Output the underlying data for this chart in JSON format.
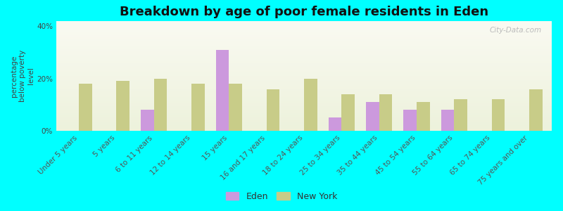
{
  "title": "Breakdown by age of poor female residents in Eden",
  "ylabel": "percentage\nbelow poverty\nlevel",
  "background_color": "#00FFFF",
  "plot_bg_top": "#fafaf2",
  "plot_bg_bottom": "#edf2dc",
  "categories": [
    "Under 5 years",
    "5 years",
    "6 to 11 years",
    "12 to 14 years",
    "15 years",
    "16 and 17 years",
    "18 to 24 years",
    "25 to 34 years",
    "35 to 44 years",
    "45 to 54 years",
    "55 to 64 years",
    "65 to 74 years",
    "75 years and over"
  ],
  "eden_values": [
    0,
    0,
    8,
    0,
    31,
    0,
    0,
    5,
    11,
    8,
    8,
    0,
    0
  ],
  "ny_values": [
    18,
    19,
    20,
    18,
    18,
    16,
    20,
    14,
    14,
    11,
    12,
    12,
    16
  ],
  "eden_color": "#cc99dd",
  "ny_color": "#c8cc88",
  "ylim": [
    0,
    42
  ],
  "yticks": [
    0,
    20,
    40
  ],
  "ytick_labels": [
    "0%",
    "20%",
    "40%"
  ],
  "bar_width": 0.35,
  "title_fontsize": 13,
  "tick_fontsize": 7.5,
  "ylabel_fontsize": 7.5,
  "legend_fontsize": 9,
  "watermark": "City-Data.com"
}
